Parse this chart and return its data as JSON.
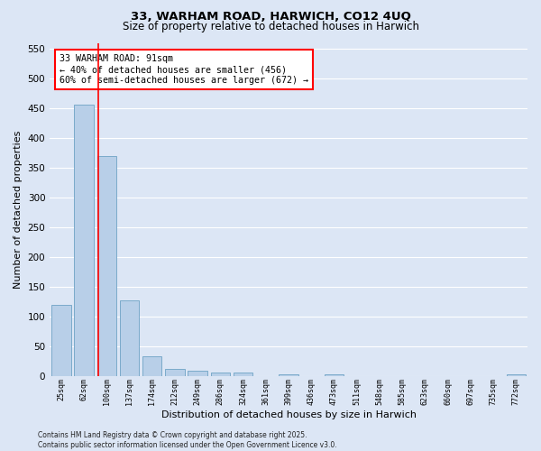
{
  "title1": "33, WARHAM ROAD, HARWICH, CO12 4UQ",
  "title2": "Size of property relative to detached houses in Harwich",
  "xlabel": "Distribution of detached houses by size in Harwich",
  "ylabel": "Number of detached properties",
  "categories": [
    "25sqm",
    "62sqm",
    "100sqm",
    "137sqm",
    "174sqm",
    "212sqm",
    "249sqm",
    "286sqm",
    "324sqm",
    "361sqm",
    "399sqm",
    "436sqm",
    "473sqm",
    "511sqm",
    "548sqm",
    "585sqm",
    "623sqm",
    "660sqm",
    "697sqm",
    "735sqm",
    "772sqm"
  ],
  "values": [
    120,
    456,
    370,
    127,
    33,
    12,
    8,
    5,
    5,
    0,
    3,
    0,
    2,
    0,
    0,
    0,
    0,
    0,
    0,
    0,
    3
  ],
  "bar_color": "#b8cfe8",
  "bar_edge_color": "#7aaaca",
  "fig_bg_color": "#dce6f5",
  "ax_bg_color": "#dce6f5",
  "grid_color": "#ffffff",
  "red_line_x": 1.62,
  "annotation_text": "33 WARHAM ROAD: 91sqm\n← 40% of detached houses are smaller (456)\n60% of semi-detached houses are larger (672) →",
  "footer": "Contains HM Land Registry data © Crown copyright and database right 2025.\nContains public sector information licensed under the Open Government Licence v3.0.",
  "ylim": [
    0,
    560
  ],
  "yticks": [
    0,
    50,
    100,
    150,
    200,
    250,
    300,
    350,
    400,
    450,
    500,
    550
  ]
}
